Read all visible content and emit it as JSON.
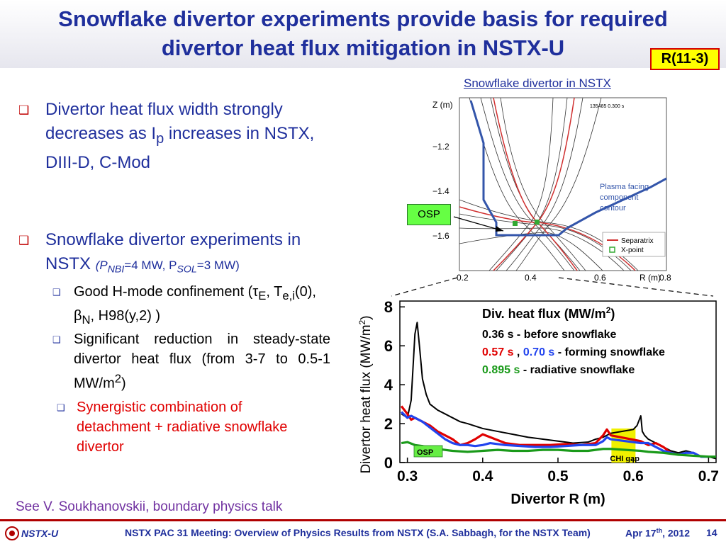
{
  "slide": {
    "title_line1": "Snowflake divertor experiments provide basis for required",
    "title_line2": "divertor heat flux mitigation in NSTX-U",
    "badge": "R(11-3)",
    "bullets": [
      {
        "text": "Divertor heat flux width strongly decreases as I",
        "sub": "p",
        "tail": " increases in NSTX, DIII-D, C-Mod"
      },
      {
        "text": "Snowflake divertor experiments in NSTX",
        "params": "(P",
        "params_sub1": "NBI",
        "params_mid": "=4 MW, P",
        "params_sub2": "SOL",
        "params_end": "=3 MW)"
      }
    ],
    "subbullets": [
      {
        "text": "Good H-mode confinement (τ",
        "s1": "E",
        "t2": ", T",
        "s2": "e,i",
        "t3": "(0), β",
        "s3": "N",
        "t4": ", H98(y,2) )"
      },
      {
        "text": "Significant reduction in steady-state divertor heat flux (from 3-7 to 0.5-1 MW/m",
        "sup": "2",
        "tail": ")"
      },
      {
        "text": "Synergistic combination of detachment + radiative snowflake divertor"
      }
    ],
    "see_also": "See V. Soukhanovskii, boundary physics talk"
  },
  "footer": {
    "logo": "NSTX-U",
    "meeting": "NSTX PAC 31 Meeting: Overview of Physics Results from NSTX (S.A. Sabbagh, for the NSTX Team)",
    "date_pre": "Apr 17",
    "date_sup": "th",
    "date_post": ", 2012",
    "page": "14"
  },
  "colors": {
    "title": "#1f2f9c",
    "badge_bg": "#ffff00",
    "badge_border": "#d40000",
    "red_text": "#e00000",
    "separatrix": "#d03030",
    "wall": "#3355aa"
  },
  "eq_plot": {
    "heading": "Snowflake divertor in NSTX",
    "shot_label": "135485 0.300 s",
    "ylabel": "Z (m)",
    "xlabel": "R (m)",
    "yticks": [
      "−1.2",
      "−1.4",
      "−1.6"
    ],
    "xticks": [
      "0.2",
      "0.4",
      "0.6",
      "0.8"
    ],
    "wall_label": [
      "Plasma facing",
      "component",
      "contour"
    ],
    "legend": [
      "Separatrix",
      "X-point"
    ],
    "osp_callout": "OSP"
  },
  "chart_data": {
    "type": "line",
    "xlabel": "Divertor R (m)",
    "ylabel": "Divertor heat flux (MW/m",
    "ylabel_sup": "2",
    "ylabel_end": ")",
    "xlim": [
      0.29,
      0.71
    ],
    "ylim": [
      0,
      8.3
    ],
    "xticks": [
      "0.3",
      "0.4",
      "0.5",
      "0.6",
      "0.7"
    ],
    "yticks": [
      "0",
      "2",
      "4",
      "6",
      "8"
    ],
    "legend_title": "Div. heat flux (MW/m",
    "legend_title_sup": "2",
    "legend_title_end": ")",
    "legend_lines": [
      [
        {
          "text": "0.36 s",
          "color": "#000000"
        },
        {
          "text": "   - before snowflake",
          "color": "#000000"
        }
      ],
      [
        {
          "text": "0.57 s",
          "color": "#e00000"
        },
        {
          "text": "  ,  ",
          "color": "#000000"
        },
        {
          "text": "0.70 s",
          "color": "#2244ee"
        },
        {
          "text": "   - forming snowflake",
          "color": "#000000"
        }
      ],
      [
        {
          "text": "0.895 s",
          "color": "#1a9a1a"
        },
        {
          "text": "    - radiative snowflake",
          "color": "#000000"
        }
      ]
    ],
    "annotations": {
      "osp": "OSP",
      "chi_gap": "CHI gap",
      "chi_gap_range": [
        0.571,
        0.603
      ]
    },
    "series": [
      {
        "name": "0.36 s",
        "color": "#000000",
        "x": [
          0.292,
          0.3,
          0.305,
          0.31,
          0.313,
          0.316,
          0.32,
          0.325,
          0.33,
          0.34,
          0.35,
          0.36,
          0.37,
          0.38,
          0.4,
          0.42,
          0.44,
          0.46,
          0.48,
          0.5,
          0.52,
          0.54,
          0.55,
          0.56,
          0.57,
          0.6,
          0.605,
          0.61,
          0.612,
          0.615,
          0.62,
          0.63,
          0.64,
          0.65,
          0.66,
          0.67,
          0.68,
          0.69,
          0.7,
          0.71
        ],
        "y": [
          2.5,
          2.3,
          3.2,
          6.6,
          7.2,
          6.0,
          4.3,
          3.5,
          3.0,
          2.7,
          2.5,
          2.3,
          2.1,
          2.0,
          1.75,
          1.6,
          1.45,
          1.3,
          1.2,
          1.1,
          1.0,
          1.05,
          1.2,
          1.3,
          1.5,
          1.7,
          1.9,
          2.4,
          1.6,
          1.4,
          1.2,
          1.0,
          0.8,
          0.6,
          0.5,
          0.6,
          0.5,
          0.3,
          0.3,
          0.2
        ]
      },
      {
        "name": "0.57 s",
        "color": "#e00000",
        "x": [
          0.292,
          0.3,
          0.305,
          0.31,
          0.32,
          0.33,
          0.34,
          0.36,
          0.37,
          0.38,
          0.39,
          0.4,
          0.41,
          0.43,
          0.45,
          0.47,
          0.49,
          0.51,
          0.53,
          0.55,
          0.56,
          0.565,
          0.57,
          0.61,
          0.62,
          0.63,
          0.64,
          0.65,
          0.66
        ],
        "y": [
          2.9,
          2.5,
          2.2,
          2.3,
          2.1,
          1.9,
          1.6,
          1.2,
          0.9,
          1.0,
          1.2,
          1.45,
          1.3,
          1.0,
          0.9,
          0.9,
          0.9,
          0.95,
          0.9,
          1.0,
          1.4,
          1.7,
          1.4,
          1.1,
          0.9,
          1.0,
          0.8,
          0.5,
          0.4
        ]
      },
      {
        "name": "0.70 s",
        "color": "#2244ee",
        "x": [
          0.292,
          0.3,
          0.305,
          0.31,
          0.32,
          0.33,
          0.34,
          0.35,
          0.36,
          0.37,
          0.38,
          0.39,
          0.4,
          0.41,
          0.43,
          0.45,
          0.47,
          0.49,
          0.51,
          0.53,
          0.55,
          0.56,
          0.565,
          0.57,
          0.61,
          0.62,
          0.63,
          0.64,
          0.65,
          0.66,
          0.67,
          0.68,
          0.69,
          0.7
        ],
        "y": [
          2.6,
          2.3,
          2.4,
          2.3,
          2.1,
          1.8,
          1.5,
          1.2,
          1.0,
          0.9,
          0.9,
          0.85,
          0.9,
          1.0,
          0.9,
          0.85,
          0.8,
          0.8,
          0.85,
          0.9,
          0.9,
          1.1,
          1.3,
          1.2,
          1.0,
          1.0,
          0.8,
          0.6,
          0.5,
          0.4,
          0.5,
          0.5,
          0.3,
          0.3
        ]
      },
      {
        "name": "0.895 s",
        "color": "#1a9a1a",
        "x": [
          0.292,
          0.3,
          0.31,
          0.32,
          0.33,
          0.34,
          0.36,
          0.38,
          0.4,
          0.42,
          0.44,
          0.46,
          0.48,
          0.5,
          0.52,
          0.54,
          0.56,
          0.57,
          0.61,
          0.62,
          0.64,
          0.66,
          0.68,
          0.7,
          0.71
        ],
        "y": [
          1.0,
          1.05,
          0.9,
          0.85,
          0.75,
          0.7,
          0.6,
          0.55,
          0.6,
          0.65,
          0.6,
          0.6,
          0.65,
          0.65,
          0.6,
          0.6,
          0.7,
          0.7,
          0.6,
          0.55,
          0.5,
          0.4,
          0.35,
          0.3,
          0.3
        ]
      }
    ]
  }
}
